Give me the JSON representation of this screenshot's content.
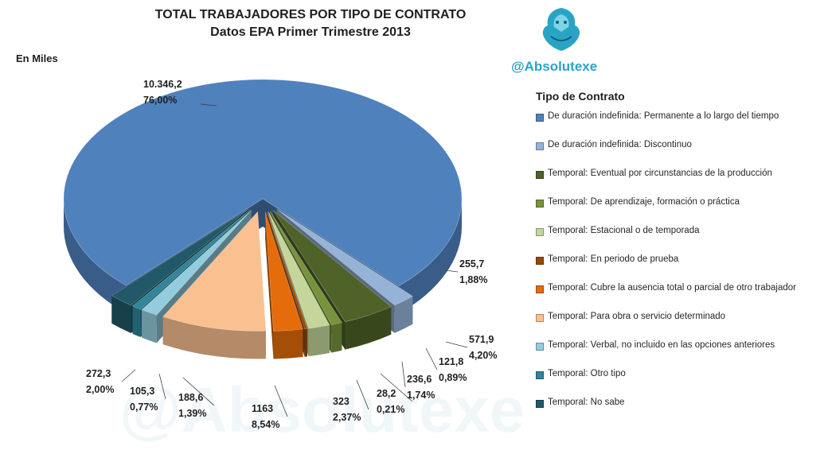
{
  "title_line1": "TOTAL TRABAJADORES POR TIPO DE CONTRATO",
  "title_line2": "Datos EPA Primer Trimestre 2013",
  "unit_label": "En Miles",
  "brand_handle": "@Absolutexe",
  "watermark_text": "@Absolutexe",
  "legend_title": "Tipo de Contrato",
  "chart_data": {
    "type": "pie",
    "title": "TOTAL TRABAJADORES POR TIPO DE CONTRATO",
    "subtitle": "Datos EPA Primer Trimestre 2013",
    "unit": "En Miles",
    "legend_title": "Tipo de Contrato",
    "legend_position": "right",
    "slices": [
      {
        "label": "De duración indefinida: Permanente a lo largo del tiempo",
        "value": 10346.2,
        "value_text": "10.346,2",
        "percent_text": "76,00%",
        "color": "#4f81bd"
      },
      {
        "label": "De duración indefinida: Discontinuo",
        "value": 255.7,
        "value_text": "255,7",
        "percent_text": "1,88%",
        "color": "#95b3d7"
      },
      {
        "label": "Temporal: Eventual  por circunstancias de la producción",
        "value": 571.9,
        "value_text": "571,9",
        "percent_text": "4,20%",
        "color": "#4f6228"
      },
      {
        "label": "Temporal: De aprendizaje, formación o práctica",
        "value": 121.8,
        "value_text": "121,8",
        "percent_text": "0,89%",
        "color": "#77933c"
      },
      {
        "label": "Temporal: Estacional  o de temporada",
        "value": 236.6,
        "value_text": "236,6",
        "percent_text": "1,74%",
        "color": "#c3d69b"
      },
      {
        "label": "Temporal: En periodo de prueba",
        "value": 28.2,
        "value_text": "28,2",
        "percent_text": "0,21%",
        "color": "#974806"
      },
      {
        "label": "Temporal: Cubre la ausencia total o parcial de otro trabajador",
        "value": 323,
        "value_text": "323",
        "percent_text": "2,37%",
        "color": "#e46c0a"
      },
      {
        "label": "Temporal: Para obra o servicio determinado",
        "value": 1163,
        "value_text": "1163",
        "percent_text": "8,54%",
        "color": "#fac090"
      },
      {
        "label": "Temporal: Verbal, no incluido en las opciones anteriores",
        "value": 188.6,
        "value_text": "188,6",
        "percent_text": "1,39%",
        "color": "#93cddd"
      },
      {
        "label": "Temporal: Otro tipo",
        "value": 105.3,
        "value_text": "105,3",
        "percent_text": "0,77%",
        "color": "#31859c"
      },
      {
        "label": "Temporal: No sabe",
        "value": 272.3,
        "value_text": "272,3",
        "percent_text": "2,00%",
        "color": "#215968"
      }
    ]
  }
}
